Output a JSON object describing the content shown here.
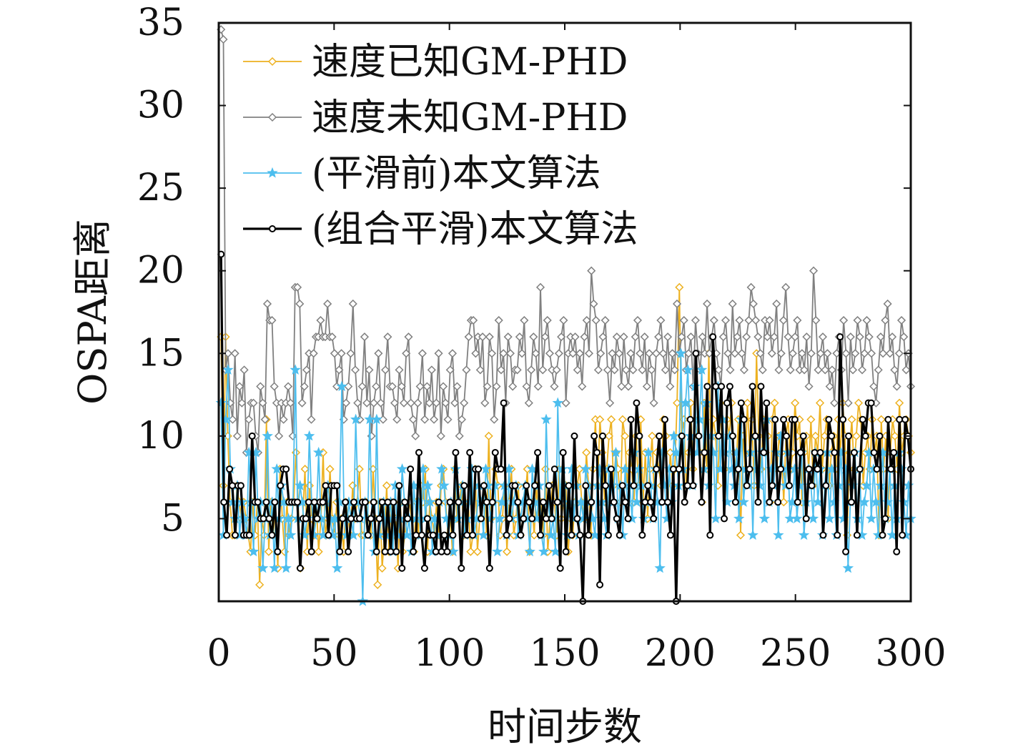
{
  "chart_data": {
    "type": "line",
    "xlabel": "时间步数",
    "ylabel": "OSPA距离",
    "xlim": [
      0,
      300
    ],
    "ylim": [
      0,
      35
    ],
    "xticks": [
      0,
      50,
      100,
      150,
      200,
      250,
      300
    ],
    "yticks": [
      5,
      10,
      15,
      20,
      25,
      30,
      35
    ],
    "grid": false,
    "legend_position": "top-left",
    "series": [
      {
        "name": "速度已知GM-PHD",
        "color": "#EDB120",
        "marker": "diamond",
        "values": [
          16,
          7,
          16,
          10,
          6,
          4,
          4,
          7,
          6,
          5,
          6,
          5,
          4,
          3,
          6,
          4,
          6,
          1,
          5,
          4,
          11,
          3,
          6,
          4,
          6,
          2,
          8,
          5,
          3,
          6,
          4,
          5,
          6,
          9,
          6,
          2,
          5,
          8,
          3,
          7,
          5,
          4,
          6,
          3,
          5,
          9,
          4,
          5,
          8,
          5,
          4,
          6,
          4,
          5,
          3,
          6,
          5,
          4,
          7,
          5,
          6,
          8,
          4,
          4,
          6,
          5,
          4,
          8,
          5,
          1,
          6,
          2,
          4,
          7,
          3,
          6,
          4,
          5,
          2,
          6,
          3,
          4,
          5,
          6,
          5,
          3,
          6,
          4,
          7,
          6,
          8,
          3,
          6,
          5,
          4,
          6,
          4,
          7,
          8,
          6,
          4,
          5,
          3,
          8,
          5,
          6,
          7,
          4,
          5,
          6,
          3,
          4,
          8,
          3,
          5,
          6,
          7,
          4,
          10,
          5,
          6,
          8,
          7,
          4,
          5,
          7,
          3,
          6,
          8,
          4,
          5,
          7,
          4,
          5,
          6,
          8,
          3,
          6,
          4,
          7,
          5,
          6,
          4,
          8,
          3,
          5,
          7,
          6,
          4,
          8,
          5,
          6,
          7,
          3,
          5,
          4,
          6,
          7,
          8,
          6,
          5,
          9,
          7,
          4,
          8,
          11,
          7,
          11,
          9,
          6,
          8,
          10,
          11,
          7,
          9,
          8,
          6,
          11,
          10,
          7,
          9,
          8,
          6,
          10,
          7,
          11,
          6,
          9,
          5,
          8,
          10,
          6,
          9,
          8,
          7,
          11,
          10,
          6,
          9,
          7,
          8,
          12,
          19,
          10,
          11,
          7,
          9,
          12,
          8,
          11,
          10,
          9,
          6,
          12,
          8,
          15,
          9,
          11,
          10,
          7,
          12,
          9,
          8,
          11,
          10,
          12,
          9,
          8,
          11,
          4,
          10,
          8,
          12,
          9,
          11,
          7,
          15,
          10,
          8,
          11,
          9,
          10,
          6,
          11,
          12,
          8,
          10,
          9,
          6,
          10,
          11,
          8,
          9,
          12,
          10,
          11,
          6,
          9,
          10,
          8,
          11,
          7,
          10,
          9,
          12,
          8,
          10,
          11,
          7,
          9,
          10,
          8,
          11,
          9,
          12,
          10,
          4,
          9,
          11,
          8,
          10,
          12,
          11,
          7,
          9,
          10,
          8,
          11,
          9,
          10,
          4,
          11,
          8,
          10,
          5,
          9,
          11,
          10,
          8,
          12,
          9,
          10,
          11,
          10,
          9
        ]
      },
      {
        "name": "速度未知GM-PHD",
        "color": "#808080",
        "marker": "diamond",
        "values": [
          34.6,
          34,
          14,
          15,
          12,
          11,
          15,
          10,
          13,
          12,
          14,
          9,
          11,
          12,
          12,
          10,
          9,
          13,
          12,
          11,
          18,
          17,
          17,
          13,
          12,
          10,
          12,
          11,
          12,
          13,
          12,
          10,
          19,
          19,
          18,
          12,
          13,
          14,
          15,
          11,
          15,
          16,
          16,
          17,
          16,
          16,
          18,
          16,
          16,
          15,
          13,
          14,
          15,
          11,
          12,
          13,
          15,
          18,
          14,
          12,
          11,
          13,
          16,
          12,
          14,
          10,
          12,
          13,
          15,
          12,
          11,
          14,
          16,
          13,
          13,
          12,
          11,
          14,
          13,
          12,
          15,
          16,
          12,
          11,
          10,
          12,
          13,
          15,
          11,
          13,
          12,
          14,
          11,
          12,
          15,
          10,
          13,
          12,
          11,
          14,
          15,
          12,
          13,
          10,
          11,
          12,
          14,
          16,
          17,
          17,
          15,
          16,
          14,
          16,
          12,
          13,
          16,
          15,
          11,
          13,
          17,
          14,
          15,
          12,
          16,
          15,
          13,
          14,
          14,
          16,
          15,
          17,
          13,
          12,
          14,
          16,
          15,
          13,
          19,
          14,
          16,
          17,
          15,
          14,
          13,
          14,
          15,
          16,
          17,
          12,
          15,
          16,
          15,
          16,
          14,
          15,
          13,
          16,
          17,
          15,
          20,
          18,
          17,
          14,
          15,
          16,
          17,
          14,
          12,
          15,
          14,
          16,
          15,
          13,
          16,
          14,
          13,
          15,
          14,
          16,
          17,
          15,
          14,
          16,
          13,
          15,
          14,
          12,
          15,
          16,
          17,
          15,
          14,
          16,
          13,
          15,
          14,
          18,
          15,
          16,
          17,
          14,
          15,
          16,
          13,
          17,
          15,
          14,
          16,
          15,
          18,
          15,
          16,
          17,
          15,
          14,
          13,
          16,
          17,
          15,
          14,
          18,
          15,
          16,
          17,
          15,
          14,
          16,
          17,
          19,
          18,
          17,
          16,
          15,
          14,
          17,
          16,
          17,
          15,
          16,
          18,
          14,
          15,
          17,
          19,
          16,
          14,
          15,
          16,
          17,
          14,
          15,
          14,
          16,
          13,
          15,
          20,
          17,
          14,
          15,
          16,
          14,
          15,
          13,
          14,
          12,
          15,
          16,
          14,
          17,
          15,
          12,
          16,
          14,
          15,
          17,
          16,
          14,
          15,
          17,
          16,
          15,
          13,
          12,
          14,
          16,
          15,
          17,
          18,
          15,
          16,
          14,
          13,
          15,
          17,
          16,
          14,
          15,
          13
        ]
      },
      {
        "name": "(平滑前)本文算法",
        "color": "#4DBEEE",
        "marker": "star",
        "values": [
          12,
          4,
          11,
          14,
          8,
          6,
          5,
          7,
          4,
          6,
          5,
          4,
          9,
          6,
          3,
          9,
          5,
          6,
          2,
          5,
          10,
          4,
          6,
          2,
          8,
          5,
          7,
          6,
          2,
          5,
          4,
          6,
          14,
          5,
          7,
          6,
          4,
          5,
          10,
          6,
          4,
          5,
          9,
          5,
          4,
          6,
          7,
          5,
          4,
          5,
          2,
          6,
          13,
          5,
          4,
          6,
          5,
          4,
          11,
          6,
          5,
          0,
          6,
          4,
          11,
          5,
          3,
          11,
          4,
          5,
          6,
          4,
          5,
          6,
          3,
          7,
          4,
          5,
          8,
          6,
          4,
          5,
          3,
          7,
          5,
          6,
          4,
          8,
          5,
          7,
          6,
          3,
          5,
          4,
          6,
          8,
          7,
          5,
          4,
          6,
          3,
          8,
          5,
          6,
          7,
          4,
          5,
          6,
          8,
          4,
          5,
          7,
          6,
          4,
          8,
          7,
          5,
          6,
          7,
          3,
          5,
          6,
          7,
          4,
          8,
          5,
          6,
          7,
          4,
          5,
          6,
          7,
          5,
          3,
          8,
          6,
          5,
          7,
          4,
          3,
          11,
          6,
          4,
          5,
          3,
          12,
          6,
          8,
          7,
          4,
          6,
          8,
          5,
          7,
          4,
          6,
          5,
          8,
          7,
          6,
          5,
          4,
          7,
          8,
          6,
          5,
          4,
          8,
          7,
          6,
          9,
          5,
          7,
          4,
          8,
          6,
          7,
          5,
          9,
          6,
          8,
          7,
          5,
          6,
          9,
          7,
          5,
          8,
          6,
          2,
          9,
          7,
          5,
          8,
          6,
          10,
          9,
          7,
          15,
          8,
          12,
          14,
          10,
          7,
          13,
          9,
          11,
          14,
          8,
          12,
          7,
          10,
          9,
          5,
          13,
          8,
          11,
          9,
          6,
          10,
          8,
          7,
          9,
          5,
          11,
          6,
          8,
          7,
          9,
          4,
          10,
          8,
          7,
          9,
          5,
          11,
          6,
          8,
          7,
          9,
          4,
          10,
          8,
          7,
          9,
          5,
          6,
          8,
          5,
          7,
          9,
          4,
          6,
          8,
          7,
          5,
          9,
          6,
          8,
          4,
          7,
          9,
          5,
          8,
          6,
          4,
          7,
          9,
          5,
          8,
          2,
          6,
          7,
          9,
          5,
          8,
          4,
          6,
          7,
          9,
          5,
          8,
          6,
          4,
          7,
          9,
          5,
          6,
          8,
          4,
          7,
          5,
          9,
          8,
          6,
          4,
          7,
          5
        ]
      },
      {
        "name": "(组合平滑)本文算法",
        "color": "#000000",
        "marker": "circle",
        "values": [
          21,
          6,
          4,
          8,
          7,
          4,
          7,
          7,
          4,
          4,
          4,
          10,
          6,
          6,
          5,
          5,
          6,
          5,
          4,
          6,
          3,
          7,
          8,
          8,
          6,
          6,
          6,
          6,
          2,
          5,
          5,
          6,
          3,
          6,
          5,
          6,
          6,
          7,
          4,
          7,
          7,
          7,
          3,
          5,
          6,
          3,
          5,
          6,
          5,
          5,
          6,
          6,
          4,
          5,
          6,
          3,
          5,
          6,
          3,
          6,
          3,
          6,
          3,
          7,
          2,
          6,
          5,
          8,
          3,
          4,
          9,
          4,
          2,
          5,
          4,
          4,
          3,
          6,
          3,
          4,
          3,
          6,
          4,
          9,
          6,
          2,
          7,
          4,
          9,
          4,
          8,
          8,
          5,
          7,
          6,
          2,
          6,
          9,
          8,
          8,
          12,
          4,
          5,
          7,
          7,
          6,
          4,
          5,
          7,
          6,
          5,
          7,
          9,
          4,
          6,
          5,
          7,
          5,
          8,
          6,
          2,
          9,
          3,
          7,
          4,
          10,
          5,
          4,
          0,
          7,
          4,
          6,
          10,
          9,
          1,
          10,
          7,
          4,
          8,
          6,
          5,
          4,
          7,
          6,
          5,
          11,
          7,
          12,
          10,
          4,
          6,
          7,
          6,
          5,
          8,
          10,
          6,
          11,
          6,
          4,
          8,
          0,
          8,
          10,
          6,
          7,
          11,
          7,
          15,
          10,
          6,
          9,
          13,
          4,
          16,
          13,
          10,
          13,
          5,
          12,
          13,
          10,
          6,
          8,
          12,
          11,
          7,
          8,
          13,
          10,
          6,
          13,
          9,
          12,
          6,
          7,
          11,
          6,
          8,
          11,
          10,
          7,
          11,
          11,
          6,
          9,
          10,
          5,
          8,
          7,
          9,
          8,
          9,
          4,
          7,
          11,
          10,
          9,
          4,
          16,
          11,
          3,
          10,
          6,
          9,
          4,
          8,
          11,
          10,
          12,
          12,
          9,
          8,
          10,
          4,
          5,
          11,
          8,
          9,
          3,
          11,
          4,
          11,
          10,
          8
        ],
        "x_start": 1,
        "x_end": 300
      }
    ]
  }
}
